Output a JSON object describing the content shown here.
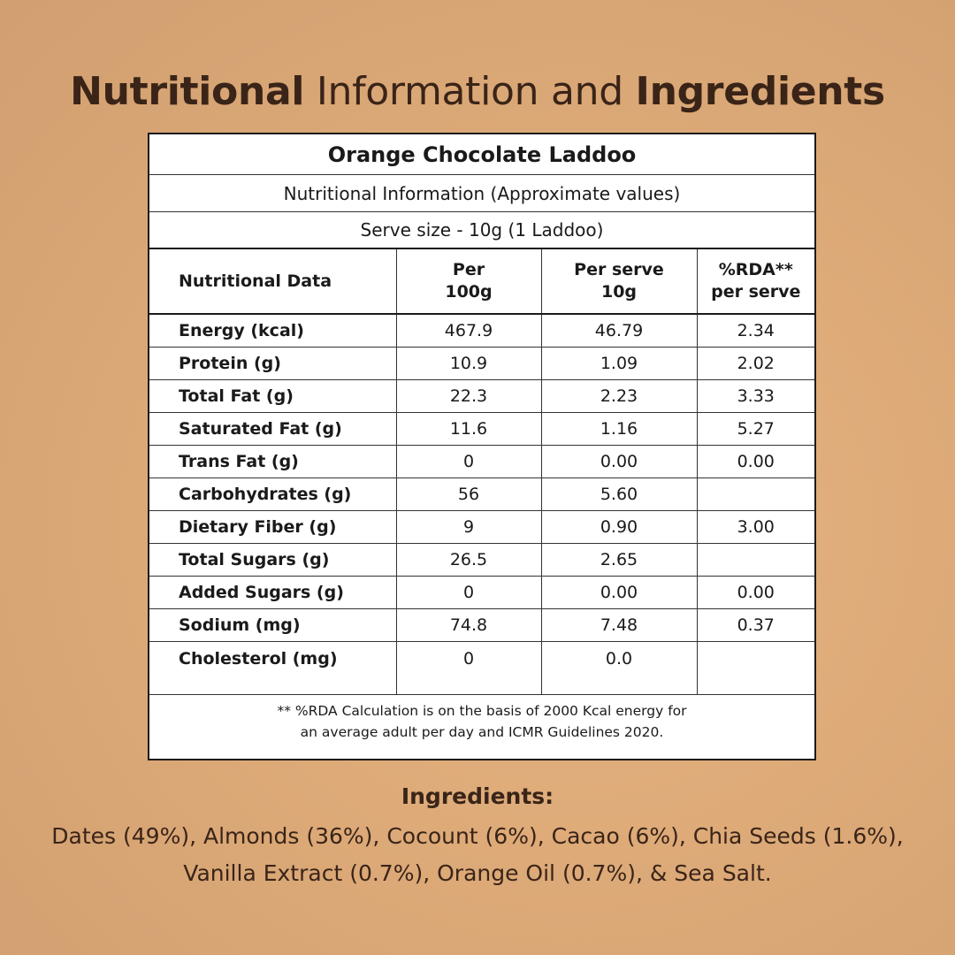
{
  "title": {
    "part1": "Nutritional",
    "part2": " Information and ",
    "part3": "Ingredients"
  },
  "product_name": "Orange Chocolate Laddoo",
  "info_subtitle": "Nutritional Information (Approximate values)",
  "serve_size": "Serve size - 10g (1 Laddoo)",
  "table": {
    "headers": {
      "col1": "Nutritional Data",
      "col2_line1": "Per",
      "col2_line2": "100g",
      "col3_line1": "Per serve",
      "col3_line2": "10g",
      "col4_line1": "%RDA**",
      "col4_line2": "per serve"
    },
    "rows": [
      {
        "label": "Energy (kcal)",
        "per100g": "467.9",
        "per_serve": "46.79",
        "rda": "2.34"
      },
      {
        "label": "Protein (g)",
        "per100g": "10.9",
        "per_serve": "1.09",
        "rda": "2.02"
      },
      {
        "label": "Total Fat (g)",
        "per100g": "22.3",
        "per_serve": "2.23",
        "rda": "3.33"
      },
      {
        "label": "Saturated Fat (g)",
        "per100g": "11.6",
        "per_serve": "1.16",
        "rda": "5.27"
      },
      {
        "label": "Trans Fat (g)",
        "per100g": "0",
        "per_serve": "0.00",
        "rda": "0.00"
      },
      {
        "label": "Carbohydrates (g)",
        "per100g": "56",
        "per_serve": "5.60",
        "rda": ""
      },
      {
        "label": "Dietary Fiber (g)",
        "per100g": "9",
        "per_serve": "0.90",
        "rda": "3.00"
      },
      {
        "label": "Total Sugars (g)",
        "per100g": "26.5",
        "per_serve": "2.65",
        "rda": ""
      },
      {
        "label": "Added Sugars (g)",
        "per100g": "0",
        "per_serve": "0.00",
        "rda": "0.00"
      },
      {
        "label": "Sodium (mg)",
        "per100g": "74.8",
        "per_serve": "7.48",
        "rda": "0.37"
      },
      {
        "label": "Cholesterol (mg)",
        "per100g": "0",
        "per_serve": "0.0",
        "rda": ""
      }
    ]
  },
  "footnote": {
    "line1": "** %RDA Calculation is on the basis of 2000 Kcal energy for",
    "line2": "an average adult per day and ICMR Guidelines 2020."
  },
  "ingredients": {
    "heading": "Ingredients:",
    "line1": "Dates (49%), Almonds (36%), Cocount (6%), Cacao (6%), Chia Seeds (1.6%),",
    "line2": "Vanilla Extract (0.7%), Orange Oil (0.7%), & Sea Salt."
  },
  "colors": {
    "background": "#ddaa78",
    "text_brown": "#3a2418",
    "table_border": "#1a1a1a"
  }
}
